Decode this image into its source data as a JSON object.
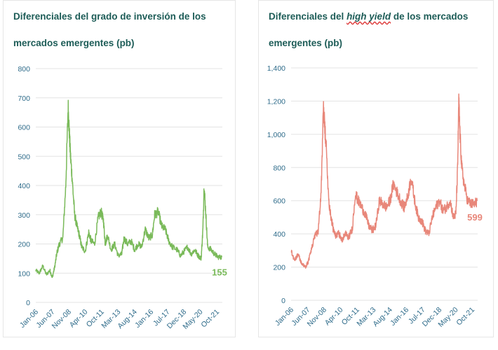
{
  "chart_data": [
    {
      "type": "line",
      "title": "Diferenciales del grado de inversión de los mercados emergentes (pb)",
      "xlabel": "",
      "ylabel": "",
      "ylim": [
        0,
        800
      ],
      "yticks": [
        "0",
        "100",
        "200",
        "300",
        "400",
        "500",
        "600",
        "700",
        "800"
      ],
      "xticks": [
        "Jan-06",
        "Jun-07",
        "Nov-08",
        "Apr-10",
        "Oct-11",
        "Mar-13",
        "Aug-14",
        "Jan-16",
        "Jul-17",
        "Dec-18",
        "May-20",
        "Oct-21"
      ],
      "grid": true,
      "color": "#7aba5a",
      "end_label": "155",
      "series": [
        {
          "x": [
            2006.0,
            2006.3,
            2006.6,
            2006.9,
            2007.2,
            2007.4,
            2007.6,
            2007.8,
            2008.0,
            2008.3,
            2008.55,
            2008.75,
            2008.85,
            2008.95,
            2009.1,
            2009.3,
            2009.5,
            2009.7,
            2009.9,
            2010.2,
            2010.5,
            2010.7,
            2011.0,
            2011.3,
            2011.55,
            2011.75,
            2011.9,
            2012.1,
            2012.4,
            2012.7,
            2013.0,
            2013.3,
            2013.5,
            2013.8,
            2014.1,
            2014.4,
            2014.7,
            2015.0,
            2015.3,
            2015.6,
            2015.9,
            2016.1,
            2016.4,
            2016.7,
            2017.0,
            2017.3,
            2017.6,
            2018.0,
            2018.3,
            2018.6,
            2018.9,
            2019.2,
            2019.5,
            2019.8,
            2020.05,
            2020.2,
            2020.3,
            2020.45,
            2020.6,
            2020.9,
            2021.2,
            2021.5,
            2021.8
          ],
          "y": [
            110,
            100,
            125,
            95,
            110,
            85,
            120,
            170,
            200,
            220,
            400,
            670,
            580,
            500,
            420,
            300,
            260,
            230,
            190,
            175,
            240,
            210,
            200,
            290,
            310,
            280,
            200,
            230,
            180,
            200,
            160,
            165,
            220,
            200,
            210,
            180,
            200,
            190,
            250,
            220,
            230,
            300,
            310,
            260,
            250,
            210,
            190,
            180,
            160,
            175,
            190,
            165,
            180,
            160,
            150,
            250,
            400,
            300,
            190,
            180,
            165,
            155,
            155
          ]
        }
      ]
    },
    {
      "type": "line",
      "title_parts": [
        "Diferenciales del ",
        "high yield",
        " de los mercados emergentes (pb)"
      ],
      "xlabel": "",
      "ylabel": "",
      "ylim": [
        0,
        1400
      ],
      "yticks": [
        "0",
        "200",
        "400",
        "600",
        "800",
        "1,000",
        "1,200",
        "1,400"
      ],
      "xticks": [
        "Jan-06",
        "Jun-07",
        "Nov-08",
        "Apr-10",
        "Oct-11",
        "Mar-13",
        "Aug-14",
        "Jan-16",
        "Jul-17",
        "Dec-18",
        "May-20",
        "Oct-21"
      ],
      "grid": true,
      "color": "#e8877a",
      "end_label": "599",
      "series": [
        {
          "x": [
            2006.0,
            2006.3,
            2006.6,
            2006.9,
            2007.2,
            2007.45,
            2007.7,
            2008.0,
            2008.3,
            2008.55,
            2008.75,
            2008.85,
            2009.0,
            2009.2,
            2009.4,
            2009.6,
            2009.8,
            2010.0,
            2010.3,
            2010.6,
            2010.9,
            2011.2,
            2011.45,
            2011.7,
            2012.0,
            2012.3,
            2012.6,
            2012.9,
            2013.2,
            2013.5,
            2013.8,
            2014.1,
            2014.4,
            2014.7,
            2015.0,
            2015.3,
            2015.6,
            2015.9,
            2016.2,
            2016.5,
            2016.8,
            2017.1,
            2017.4,
            2017.7,
            2018.0,
            2018.3,
            2018.6,
            2018.9,
            2019.2,
            2019.5,
            2019.8,
            2020.0,
            2020.15,
            2020.25,
            2020.35,
            2020.5,
            2020.7,
            2021.0,
            2021.3,
            2021.6,
            2021.8
          ],
          "y": [
            300,
            240,
            280,
            220,
            200,
            230,
            300,
            380,
            420,
            650,
            1160,
            1050,
            900,
            600,
            500,
            420,
            380,
            420,
            360,
            400,
            380,
            430,
            640,
            600,
            560,
            520,
            450,
            420,
            450,
            600,
            580,
            560,
            600,
            700,
            650,
            600,
            560,
            620,
            740,
            600,
            500,
            480,
            420,
            400,
            500,
            560,
            600,
            540,
            560,
            600,
            500,
            520,
            800,
            1200,
            1000,
            800,
            700,
            600,
            580,
            580,
            599
          ]
        }
      ]
    }
  ]
}
